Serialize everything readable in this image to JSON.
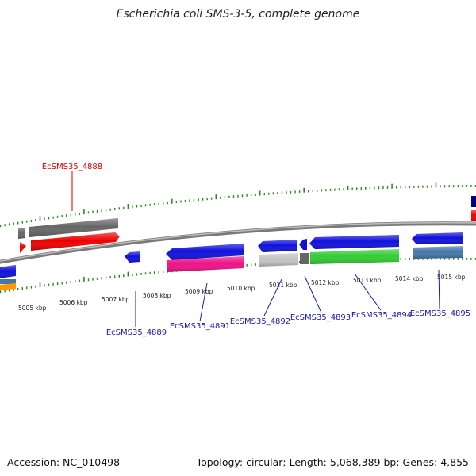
{
  "title": "Escherichia coli SMS-3-5, complete genome",
  "footer": {
    "accession": "Accession: NC_010498",
    "summary": "Topology: circular; Length: 5,068,389 bp; Genes: 4,855"
  },
  "colors": {
    "backbone": "#8a8a8a",
    "tick": "#2e8b1f",
    "label_red": "#dd0000",
    "label_blue": "#1a1aaa",
    "blue": "#1010dd",
    "red": "#ee0000",
    "gray": "#666666",
    "light_gray": "#c4c4c4",
    "green": "#33cc33",
    "pink": "#ee1188",
    "steel": "#4477aa",
    "orange": "#ff9900",
    "navy": "#000080"
  },
  "kbp_labels": [
    {
      "text": "5005 kbp"
    },
    {
      "text": "5006 kbp"
    },
    {
      "text": "5007 kbp"
    },
    {
      "text": "5008 kbp"
    },
    {
      "text": "5009 kbp"
    },
    {
      "text": "5010 kbp"
    },
    {
      "text": "5011 kbp"
    },
    {
      "text": "5012 kbp"
    },
    {
      "text": "5013 kbp"
    },
    {
      "text": "5014 kbp"
    },
    {
      "text": "5015 kbp"
    }
  ],
  "gene_labels": [
    {
      "text": "EcSMS35_4888",
      "color_key": "label_red"
    },
    {
      "text": "EcSMS35_4889",
      "color_key": "label_blue"
    },
    {
      "text": "EcSMS35_4891",
      "color_key": "label_blue"
    },
    {
      "text": "EcSMS35_4892",
      "color_key": "label_blue"
    },
    {
      "text": "EcSMS35_4893",
      "color_key": "label_blue"
    },
    {
      "text": "EcSMS35_4894",
      "color_key": "label_blue"
    },
    {
      "text": "EcSMS35_4895",
      "color_key": "label_blue"
    }
  ]
}
